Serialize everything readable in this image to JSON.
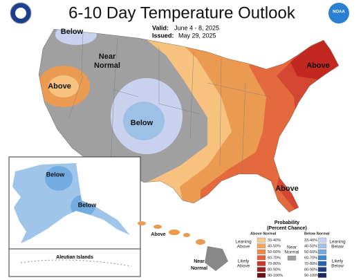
{
  "header": {
    "title": "6-10 Day Temperature Outlook",
    "valid_label": "Valid:",
    "valid": "June 4 - 8, 2025",
    "issued_label": "Issued:",
    "issued": "May 29, 2025",
    "logo_text": "NOAA"
  },
  "map": {
    "labels": [
      "Below",
      "Near",
      "Normal",
      "Above",
      "Below",
      "Above",
      "Above",
      "Below",
      "Below",
      "Above",
      "Near",
      "Normal"
    ],
    "inset_label": "Aleutian Islands"
  },
  "legend": {
    "title": [
      "Probability",
      "(Percent Chance)"
    ],
    "above_header": "Above Normal",
    "below_header": "Below Normal",
    "above_ranges": [
      "33-40%",
      "40-50%",
      "50-60%",
      "60-70%",
      "70-80%",
      "80-90%",
      "90-100%"
    ],
    "below_ranges": [
      "33-40%",
      "40-50%",
      "50-60%",
      "60-70%",
      "70-80%",
      "80-90%",
      "90-100%"
    ],
    "leaning_above": [
      "Leaning",
      "Above"
    ],
    "likely_above": [
      "Likely",
      "Above"
    ],
    "near_normal": [
      "Near",
      "Normal"
    ],
    "leaning_below": [
      "Leaning",
      "Below"
    ],
    "likely_below": [
      "Likely",
      "Below"
    ]
  }
}
